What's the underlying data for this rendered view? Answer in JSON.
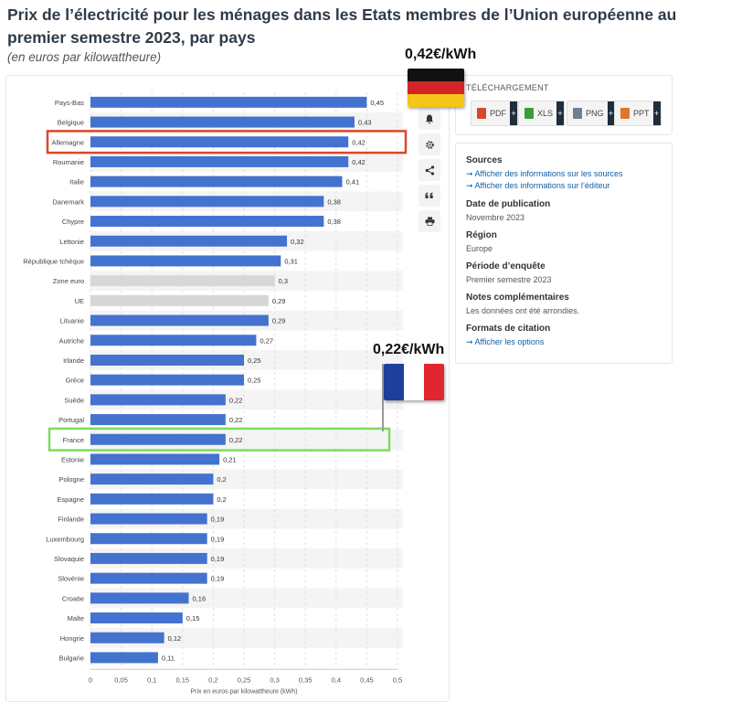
{
  "page": {
    "title": "Prix de l’électricité pour les ménages dans les Etats membres de l’Union européenne au premier semestre 2023, par pays",
    "subtitle": "(en euros par kilowattheure)"
  },
  "colors": {
    "bar": "#4472cf",
    "bar_highlight": "#d7d7d7",
    "germany_box": "#d9472a",
    "france_box": "#7ddc5a"
  },
  "download": {
    "title": "TÉLÉCHARGEMENT",
    "buttons": [
      {
        "label": "PDF",
        "icon": "pdf-file-icon",
        "color": "#d9472a"
      },
      {
        "label": "XLS",
        "icon": "xls-file-icon",
        "color": "#3a9b3a"
      },
      {
        "label": "PNG",
        "icon": "png-file-icon",
        "color": "#6e7f91"
      },
      {
        "label": "PPT",
        "icon": "ppt-file-icon",
        "color": "#e0762b"
      }
    ],
    "plus": "+"
  },
  "tools": [
    "bell-icon",
    "gear-icon",
    "share-icon",
    "quote-icon",
    "print-icon"
  ],
  "info": {
    "sources": {
      "heading": "Sources",
      "link1": "➞ Afficher des informations sur les sources",
      "link2": "➞ Afficher des informations sur l’éditeur"
    },
    "publication": {
      "heading": "Date de publication",
      "value": "Novembre 2023"
    },
    "region": {
      "heading": "Région",
      "value": "Europe"
    },
    "period": {
      "heading": "Période d’enquête",
      "value": "Premier semestre 2023"
    },
    "notes": {
      "heading": "Notes complémentaires",
      "value": "Les données ont été arrondies."
    },
    "citation": {
      "heading": "Formats de citation",
      "link": "➞ Afficher les options"
    }
  },
  "annotations": {
    "germany": "0,42€/kWh",
    "france": "0,22€/kWh"
  },
  "chart_data": {
    "type": "bar",
    "orientation": "horizontal",
    "categories": [
      "Pays-Bas",
      "Belgique",
      "Allemagne",
      "Roumanie",
      "Italie",
      "Danemark",
      "Chypre",
      "Lettonie",
      "République tchèque",
      "Zone euro",
      "UE",
      "Lituanie",
      "Autriche",
      "Irlande",
      "Grèce",
      "Suède",
      "Portugal",
      "France",
      "Estonie",
      "Pologne",
      "Espagne",
      "Finlande",
      "Luxembourg",
      "Slovaquie",
      "Slovénie",
      "Croatie",
      "Malte",
      "Hongrie",
      "Bulgarie"
    ],
    "values": [
      0.45,
      0.43,
      0.42,
      0.42,
      0.41,
      0.38,
      0.38,
      0.32,
      0.31,
      0.3,
      0.29,
      0.29,
      0.27,
      0.25,
      0.25,
      0.22,
      0.22,
      0.22,
      0.21,
      0.2,
      0.2,
      0.19,
      0.19,
      0.19,
      0.19,
      0.16,
      0.15,
      0.12,
      0.11
    ],
    "value_labels": [
      "0,45",
      "0,43",
      "0,42",
      "0,42",
      "0,41",
      "0,38",
      "0,38",
      "0,32",
      "0,31",
      "0,3",
      "0,29",
      "0,29",
      "0,27",
      "0,25",
      "0,25",
      "0,22",
      "0,22",
      "0,22",
      "0,21",
      "0,2",
      "0,2",
      "0,19",
      "0,19",
      "0,19",
      "0,19",
      "0,16",
      "0,15",
      "0,12",
      "0,11"
    ],
    "highlighted_gray": [
      "Zone euro",
      "UE"
    ],
    "boxed": {
      "red": "Allemagne",
      "green": "France"
    },
    "xlabel": "Prix en euros par kilowattheure (kWh)",
    "xlim": [
      0,
      0.5
    ],
    "xticks": [
      0,
      0.05,
      0.1,
      0.15,
      0.2,
      0.25,
      0.3,
      0.35,
      0.4,
      0.45,
      0.5
    ],
    "xtick_labels": [
      "0",
      "0,05",
      "0,1",
      "0,15",
      "0,2",
      "0,25",
      "0,3",
      "0,35",
      "0,4",
      "0,45",
      "0,5"
    ],
    "grid": true,
    "legend": "none"
  }
}
